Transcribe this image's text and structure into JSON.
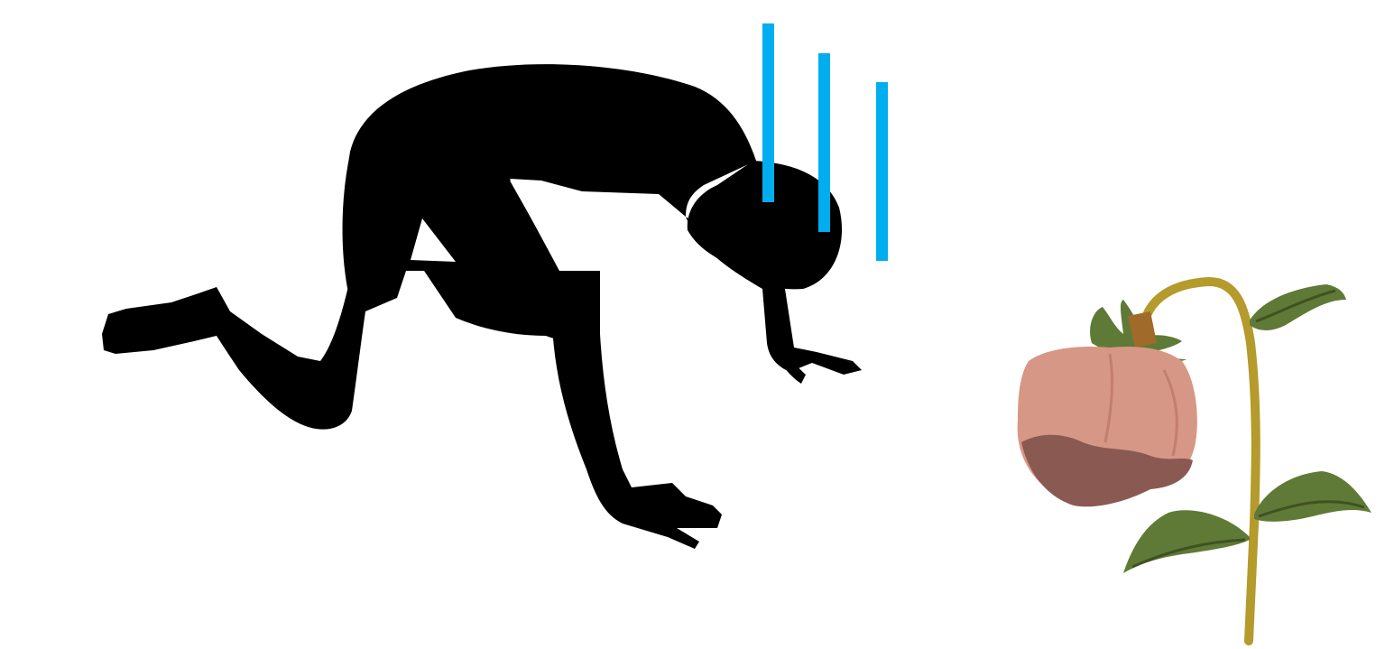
{
  "scene": {
    "background": "#ffffff",
    "figure": {
      "icon": "kneeling-despair-silhouette",
      "color": "#000000"
    },
    "gloom_lines": {
      "icon": "gloom-lines",
      "color": "#00aeef",
      "count": 3
    },
    "flower": {
      "icon": "wilted-rose",
      "petal_color": "#d79786",
      "petal_shadow": "#8a5a52",
      "leaf_color": "#5f7a36",
      "stem_color": "#b59a2c"
    }
  }
}
